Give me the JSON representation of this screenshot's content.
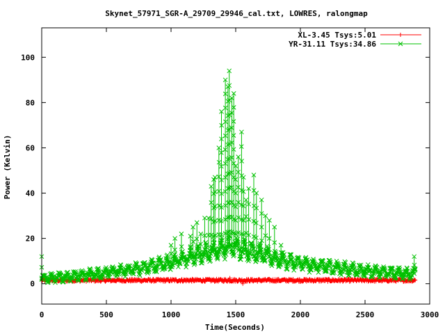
{
  "chart_data": {
    "type": "line",
    "title": "Skynet_57971_SGR-A_29709_29946_cal.txt, LOWRES, ralongmap",
    "xlabel": "Time(Seconds)",
    "ylabel": "Power (Kelvin)",
    "xlim": [
      0,
      3000
    ],
    "ylim": [
      -9,
      113
    ],
    "xticks": [
      0,
      500,
      1000,
      1500,
      2000,
      2500,
      3000
    ],
    "yticks": [
      0,
      20,
      40,
      60,
      80,
      100
    ],
    "grid": false,
    "legend_position": "top-right",
    "series": [
      {
        "name": "XL-3.45 Tsys:5.01",
        "color": "#ff0000",
        "marker": "plus",
        "x_range": [
          0,
          2890
        ],
        "baseline": 1.5,
        "outliers": [
          [
            1455,
            2.5
          ],
          [
            1555,
            0
          ]
        ]
      },
      {
        "name": "YR-31.11 Tsys:34.86",
        "color": "#00c000",
        "marker": "cross",
        "x_range": [
          0,
          2890
        ],
        "envelope": [
          [
            0,
            2.5
          ],
          [
            200,
            3.2
          ],
          [
            400,
            4.2
          ],
          [
            600,
            5.5
          ],
          [
            800,
            7.2
          ],
          [
            1000,
            9.5
          ],
          [
            1200,
            12.5
          ],
          [
            1350,
            15
          ],
          [
            1450,
            16.5
          ],
          [
            1550,
            15.5
          ],
          [
            1700,
            13
          ],
          [
            1850,
            10.5
          ],
          [
            2000,
            8.8
          ],
          [
            2200,
            7.5
          ],
          [
            2400,
            6.3
          ],
          [
            2600,
            5.2
          ],
          [
            2800,
            4.5
          ],
          [
            2890,
            4.5
          ]
        ],
        "peaks": [
          [
            0,
            12
          ],
          [
            1000,
            17
          ],
          [
            1030,
            20
          ],
          [
            1080,
            22
          ],
          [
            1150,
            21
          ],
          [
            1170,
            25
          ],
          [
            1200,
            27
          ],
          [
            1230,
            22
          ],
          [
            1260,
            29
          ],
          [
            1290,
            29
          ],
          [
            1310,
            43
          ],
          [
            1330,
            46
          ],
          [
            1340,
            47
          ],
          [
            1370,
            60
          ],
          [
            1390,
            76
          ],
          [
            1420,
            90
          ],
          [
            1440,
            87
          ],
          [
            1450,
            94
          ],
          [
            1470,
            82
          ],
          [
            1485,
            84
          ],
          [
            1500,
            52
          ],
          [
            1520,
            56
          ],
          [
            1545,
            67
          ],
          [
            1560,
            47
          ],
          [
            1580,
            37
          ],
          [
            1600,
            42
          ],
          [
            1640,
            48
          ],
          [
            1660,
            40
          ],
          [
            1700,
            37
          ],
          [
            1730,
            30
          ],
          [
            1760,
            28
          ],
          [
            1800,
            25
          ],
          [
            1850,
            17
          ],
          [
            2880,
            12
          ]
        ]
      }
    ]
  }
}
